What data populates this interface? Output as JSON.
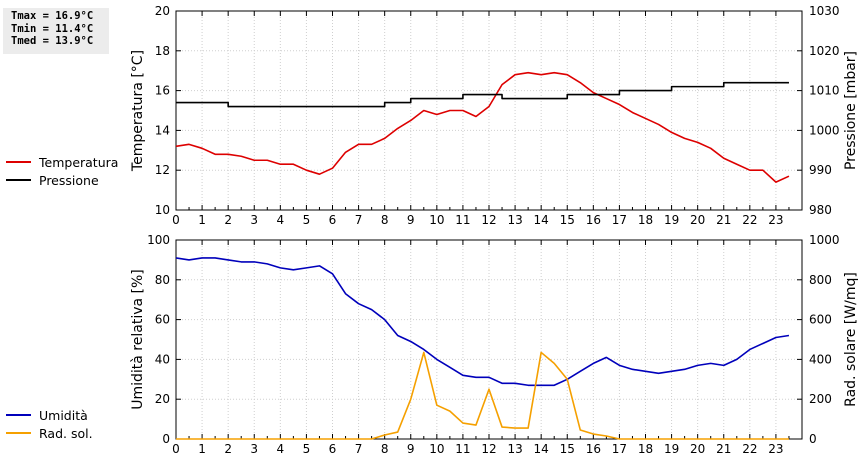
{
  "stats": [
    "Tmax = 16.9°C",
    "Tmin = 11.4°C",
    "Tmed = 13.9°C"
  ],
  "legend_top": [
    {
      "label": "Temperatura",
      "color": "#dd0000"
    },
    {
      "label": "Pressione",
      "color": "#000000"
    }
  ],
  "legend_bottom": [
    {
      "label": "Umidità",
      "color": "#0000bb"
    },
    {
      "label": "Rad. sol.",
      "color": "#f5a000"
    }
  ],
  "chart_data": [
    {
      "type": "line",
      "ylabel": "Temperatura [°C]",
      "y2label": "Pressione [mbar]",
      "xlim": [
        0,
        24
      ],
      "ylim": [
        10,
        20
      ],
      "y2lim": [
        980,
        1030
      ],
      "xticks": [
        "0",
        "1",
        "2",
        "3",
        "4",
        "5",
        "6",
        "7",
        "8",
        "9",
        "10",
        "11",
        "12",
        "13",
        "14",
        "15",
        "16",
        "17",
        "18",
        "19",
        "20",
        "21",
        "22",
        "23"
      ],
      "yticks": [
        "10",
        "12",
        "14",
        "16",
        "18",
        "20"
      ],
      "y2ticks": [
        "980",
        "990",
        "1000",
        "1010",
        "1020",
        "1030"
      ],
      "grid": true,
      "series": [
        {
          "name": "Temperatura",
          "axis": "left",
          "color": "#dd0000",
          "x": [
            0,
            0.5,
            1,
            1.5,
            2,
            2.5,
            3,
            3.5,
            4,
            4.5,
            5,
            5.5,
            6,
            6.5,
            7,
            7.5,
            8,
            8.5,
            9,
            9.5,
            10,
            10.5,
            11,
            11.5,
            12,
            12.5,
            13,
            13.5,
            14,
            14.5,
            15,
            15.5,
            16,
            16.5,
            17,
            17.5,
            18,
            18.5,
            19,
            19.5,
            20,
            20.5,
            21,
            21.5,
            22,
            22.5,
            23,
            23.5
          ],
          "values": [
            13.2,
            13.3,
            13.1,
            12.8,
            12.8,
            12.7,
            12.5,
            12.5,
            12.3,
            12.3,
            12.0,
            11.8,
            12.1,
            12.9,
            13.3,
            13.3,
            13.6,
            14.1,
            14.5,
            15.0,
            14.8,
            15.0,
            15.0,
            14.7,
            15.2,
            16.3,
            16.8,
            16.9,
            16.8,
            16.9,
            16.8,
            16.4,
            15.9,
            15.6,
            15.3,
            14.9,
            14.6,
            14.3,
            13.9,
            13.6,
            13.4,
            13.1,
            12.6,
            12.3,
            12.0,
            12.0,
            11.4,
            11.7
          ]
        },
        {
          "name": "Pressione",
          "axis": "right",
          "color": "#000000",
          "x": [
            0,
            1.5,
            2,
            7.5,
            8,
            8.5,
            9,
            11,
            12,
            12.5,
            15,
            16.5,
            17,
            18.5,
            19,
            20.5,
            21,
            23.5
          ],
          "values": [
            1007,
            1007,
            1006,
            1006,
            1007,
            1007,
            1008,
            1009,
            1009,
            1008,
            1009,
            1009,
            1010,
            1010,
            1011,
            1011,
            1012,
            1012
          ]
        }
      ]
    },
    {
      "type": "line",
      "ylabel": "Umidità relativa [%]",
      "y2label": "Rad. solare [W/mq]",
      "xlim": [
        0,
        24
      ],
      "ylim": [
        0,
        100
      ],
      "y2lim": [
        0,
        1000
      ],
      "xticks": [
        "0",
        "1",
        "2",
        "3",
        "4",
        "5",
        "6",
        "7",
        "8",
        "9",
        "10",
        "11",
        "12",
        "13",
        "14",
        "15",
        "16",
        "17",
        "18",
        "19",
        "20",
        "21",
        "22",
        "23"
      ],
      "yticks": [
        "0",
        "20",
        "40",
        "60",
        "80",
        "100"
      ],
      "y2ticks": [
        "0",
        "200",
        "400",
        "600",
        "800",
        "1000"
      ],
      "grid": true,
      "series": [
        {
          "name": "Umidità",
          "axis": "left",
          "color": "#0000bb",
          "x": [
            0,
            0.5,
            1,
            1.5,
            2,
            2.5,
            3,
            3.5,
            4,
            4.5,
            5,
            5.5,
            6,
            6.5,
            7,
            7.5,
            8,
            8.5,
            9,
            9.5,
            10,
            10.5,
            11,
            11.5,
            12,
            12.5,
            13,
            13.5,
            14,
            14.5,
            15,
            15.5,
            16,
            16.5,
            17,
            17.5,
            18,
            18.5,
            19,
            19.5,
            20,
            20.5,
            21,
            21.5,
            22,
            22.5,
            23,
            23.5
          ],
          "values": [
            91,
            90,
            91,
            91,
            90,
            89,
            89,
            88,
            86,
            85,
            86,
            87,
            83,
            73,
            68,
            65,
            60,
            52,
            49,
            45,
            40,
            36,
            32,
            31,
            31,
            28,
            28,
            27,
            27,
            27,
            30,
            34,
            38,
            41,
            37,
            35,
            34,
            33,
            34,
            35,
            37,
            38,
            37,
            40,
            45,
            48,
            51,
            52
          ]
        },
        {
          "name": "Rad. sol.",
          "axis": "right",
          "color": "#f5a000",
          "x": [
            0,
            0.5,
            1,
            1.5,
            2,
            2.5,
            3,
            3.5,
            4,
            4.5,
            5,
            5.5,
            6,
            6.5,
            7,
            7.5,
            8,
            8.5,
            9,
            9.5,
            10,
            10.5,
            11,
            11.5,
            12,
            12.5,
            13,
            13.5,
            14,
            14.5,
            15,
            15.5,
            16,
            16.5,
            17,
            17.5,
            18,
            18.5,
            19,
            19.5,
            20,
            20.5,
            21,
            21.5,
            22,
            22.5,
            23,
            23.5
          ],
          "values": [
            0,
            0,
            0,
            0,
            0,
            0,
            0,
            0,
            0,
            0,
            0,
            0,
            0,
            0,
            0,
            0,
            20,
            35,
            200,
            435,
            170,
            140,
            80,
            70,
            250,
            60,
            55,
            55,
            435,
            380,
            300,
            45,
            25,
            15,
            0,
            0,
            0,
            0,
            0,
            0,
            0,
            0,
            0,
            0,
            0,
            0,
            0,
            0
          ]
        }
      ]
    }
  ]
}
